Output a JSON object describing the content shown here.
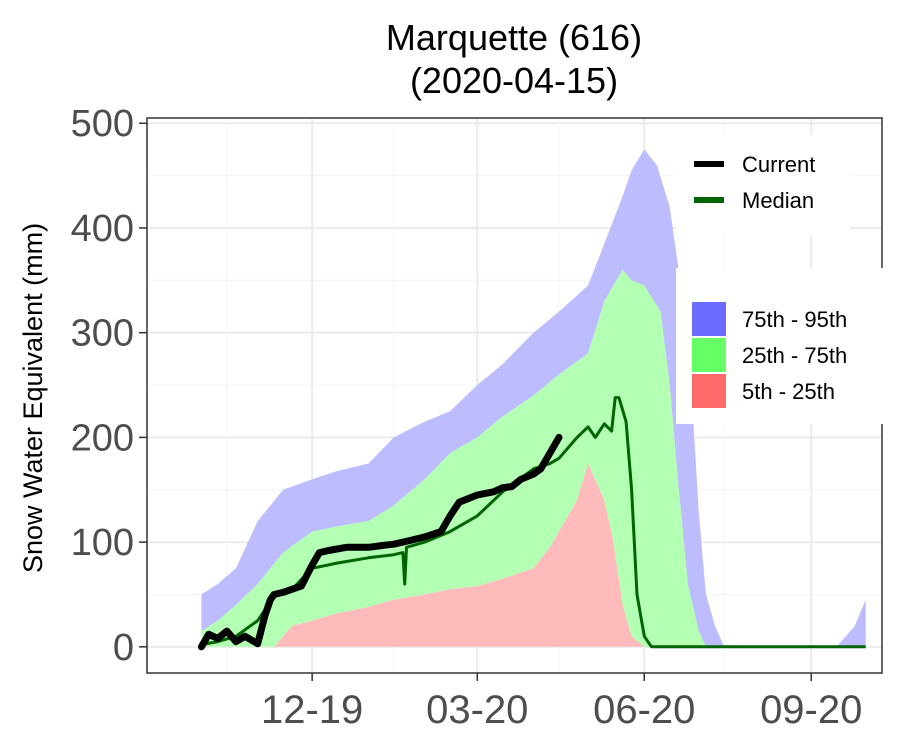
{
  "chart_data": {
    "type": "area",
    "title_line1": "Marquette (616)",
    "title_line2": "(2020-04-15)",
    "ylabel": "Snow Water Equivalent (mm)",
    "xlabel": "",
    "ylim": [
      -25,
      505
    ],
    "xlim": [
      "2019-09-01",
      "2020-10-10"
    ],
    "y_ticks": [
      0,
      100,
      200,
      300,
      400,
      500
    ],
    "y_tick_labels": [
      "0",
      "100",
      "200",
      "300",
      "400",
      "500"
    ],
    "x_ticks": [
      "2019-12-01",
      "2020-03-01",
      "2020-06-01",
      "2020-09-01"
    ],
    "x_tick_labels": [
      "12-19",
      "03-20",
      "06-20",
      "09-20"
    ],
    "grid": true,
    "legend_lines": [
      {
        "name": "Current",
        "color": "#000000"
      },
      {
        "name": "Median",
        "color": "#006400"
      }
    ],
    "legend_bands": [
      {
        "name": "75th - 95th",
        "color": "#6b6bff"
      },
      {
        "name": "25th - 75th",
        "color": "#66ff66"
      },
      {
        "name": "5th - 25th",
        "color": "#ff6b6b"
      }
    ],
    "band_fill": {
      "p75_95": "#bcbcff",
      "p25_75": "#b3ffb3",
      "p05_25": "#ffbbbb"
    },
    "series": [
      {
        "name": "95th",
        "x": [
          "2019-10-01",
          "2019-10-10",
          "2019-10-20",
          "2019-11-01",
          "2019-11-15",
          "2019-12-01",
          "2019-12-15",
          "2020-01-01",
          "2020-01-15",
          "2020-02-01",
          "2020-02-15",
          "2020-03-01",
          "2020-03-15",
          "2020-04-01",
          "2020-04-15",
          "2020-05-01",
          "2020-05-10",
          "2020-05-20",
          "2020-05-25",
          "2020-06-01",
          "2020-06-08",
          "2020-06-15",
          "2020-06-25",
          "2020-07-01",
          "2020-07-05",
          "2020-07-10",
          "2020-07-15",
          "2020-09-15",
          "2020-09-25",
          "2020-10-01"
        ],
        "values": [
          50,
          60,
          75,
          120,
          150,
          160,
          168,
          175,
          200,
          215,
          225,
          250,
          270,
          300,
          320,
          345,
          385,
          430,
          455,
          475,
          460,
          420,
          300,
          130,
          50,
          20,
          0,
          0,
          20,
          45
        ]
      },
      {
        "name": "75th",
        "x": [
          "2019-10-01",
          "2019-10-10",
          "2019-10-20",
          "2019-11-01",
          "2019-11-15",
          "2019-12-01",
          "2019-12-15",
          "2020-01-01",
          "2020-01-15",
          "2020-02-01",
          "2020-02-15",
          "2020-03-01",
          "2020-03-15",
          "2020-04-01",
          "2020-04-15",
          "2020-05-01",
          "2020-05-10",
          "2020-05-20",
          "2020-05-25",
          "2020-06-01",
          "2020-06-10",
          "2020-06-15",
          "2020-06-20",
          "2020-06-25",
          "2020-07-01",
          "2020-07-05"
        ],
        "values": [
          15,
          25,
          40,
          60,
          90,
          110,
          115,
          120,
          135,
          160,
          185,
          200,
          220,
          240,
          260,
          280,
          330,
          360,
          350,
          345,
          320,
          250,
          150,
          60,
          15,
          0
        ]
      },
      {
        "name": "25th",
        "x": [
          "2019-10-01",
          "2019-11-01",
          "2019-11-10",
          "2019-11-20",
          "2019-12-01",
          "2019-12-15",
          "2020-01-01",
          "2020-01-15",
          "2020-02-01",
          "2020-02-15",
          "2020-03-01",
          "2020-03-15",
          "2020-04-01",
          "2020-04-10",
          "2020-04-15",
          "2020-04-25",
          "2020-05-01",
          "2020-05-10",
          "2020-05-15",
          "2020-05-20",
          "2020-05-25",
          "2020-06-01"
        ],
        "values": [
          0,
          0,
          0,
          20,
          25,
          32,
          38,
          45,
          50,
          55,
          58,
          65,
          75,
          95,
          110,
          140,
          175,
          140,
          100,
          40,
          10,
          0
        ]
      },
      {
        "name": "5th",
        "x": [
          "2019-10-01",
          "2020-10-01"
        ],
        "values": [
          0,
          0
        ]
      },
      {
        "name": "Median",
        "x": [
          "2019-10-01",
          "2019-10-10",
          "2019-10-20",
          "2019-11-01",
          "2019-11-10",
          "2019-11-20",
          "2019-12-01",
          "2019-12-15",
          "2020-01-01",
          "2020-01-15",
          "2020-01-20",
          "2020-01-21",
          "2020-01-22",
          "2020-02-01",
          "2020-02-15",
          "2020-03-01",
          "2020-03-15",
          "2020-04-01",
          "2020-04-10",
          "2020-04-15",
          "2020-04-25",
          "2020-05-01",
          "2020-05-05",
          "2020-05-10",
          "2020-05-14",
          "2020-05-16",
          "2020-05-18",
          "2020-05-22",
          "2020-05-25",
          "2020-05-28",
          "2020-06-01",
          "2020-06-05",
          "2020-10-01"
        ],
        "values": [
          2,
          5,
          10,
          25,
          48,
          55,
          75,
          80,
          85,
          88,
          90,
          60,
          95,
          100,
          110,
          125,
          148,
          170,
          175,
          180,
          200,
          210,
          200,
          213,
          206,
          238,
          238,
          215,
          150,
          50,
          10,
          0,
          0
        ]
      },
      {
        "name": "Current",
        "x": [
          "2019-10-01",
          "2019-10-05",
          "2019-10-10",
          "2019-10-15",
          "2019-10-20",
          "2019-10-25",
          "2019-11-01",
          "2019-11-05",
          "2019-11-08",
          "2019-11-10",
          "2019-11-15",
          "2019-11-20",
          "2019-11-25",
          "2019-12-01",
          "2019-12-05",
          "2019-12-10",
          "2019-12-20",
          "2020-01-01",
          "2020-01-10",
          "2020-01-15",
          "2020-01-20",
          "2020-01-25",
          "2020-02-01",
          "2020-02-10",
          "2020-02-15",
          "2020-02-20",
          "2020-03-01",
          "2020-03-10",
          "2020-03-15",
          "2020-03-20",
          "2020-03-25",
          "2020-04-01",
          "2020-04-05",
          "2020-04-10",
          "2020-04-15"
        ],
        "values": [
          0,
          12,
          8,
          15,
          5,
          10,
          3,
          30,
          45,
          50,
          52,
          55,
          58,
          78,
          90,
          92,
          95,
          95,
          97,
          98,
          100,
          102,
          105,
          110,
          125,
          138,
          145,
          148,
          152,
          153,
          160,
          165,
          170,
          185,
          200
        ]
      }
    ]
  }
}
